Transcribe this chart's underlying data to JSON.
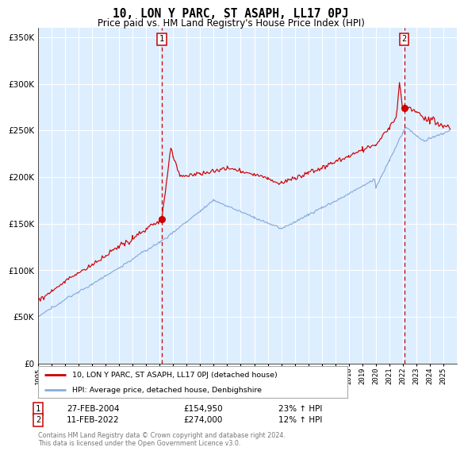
{
  "title": "10, LON Y PARC, ST ASAPH, LL17 0PJ",
  "subtitle": "Price paid vs. HM Land Registry's House Price Index (HPI)",
  "legend_line1": "10, LON Y PARC, ST ASAPH, LL17 0PJ (detached house)",
  "legend_line2": "HPI: Average price, detached house, Denbighshire",
  "annotation1_text": "27-FEB-2004",
  "annotation1_price_text": "£154,950",
  "annotation1_hpi_text": "23% ↑ HPI",
  "annotation1_date_num": 2004.15,
  "annotation1_price": 154950,
  "annotation2_text": "11-FEB-2022",
  "annotation2_price_text": "£274,000",
  "annotation2_hpi_text": "12% ↑ HPI",
  "annotation2_date_num": 2022.11,
  "annotation2_price": 274000,
  "footer": "Contains HM Land Registry data © Crown copyright and database right 2024.\nThis data is licensed under the Open Government Licence v3.0.",
  "red_color": "#cc0000",
  "blue_color": "#88aadd",
  "plot_bg": "#ddeeff",
  "grid_color": "#ffffff",
  "ylim": [
    0,
    360000
  ],
  "yticks": [
    0,
    50000,
    100000,
    150000,
    200000,
    250000,
    300000,
    350000
  ],
  "xstart": 1995,
  "xend": 2026
}
